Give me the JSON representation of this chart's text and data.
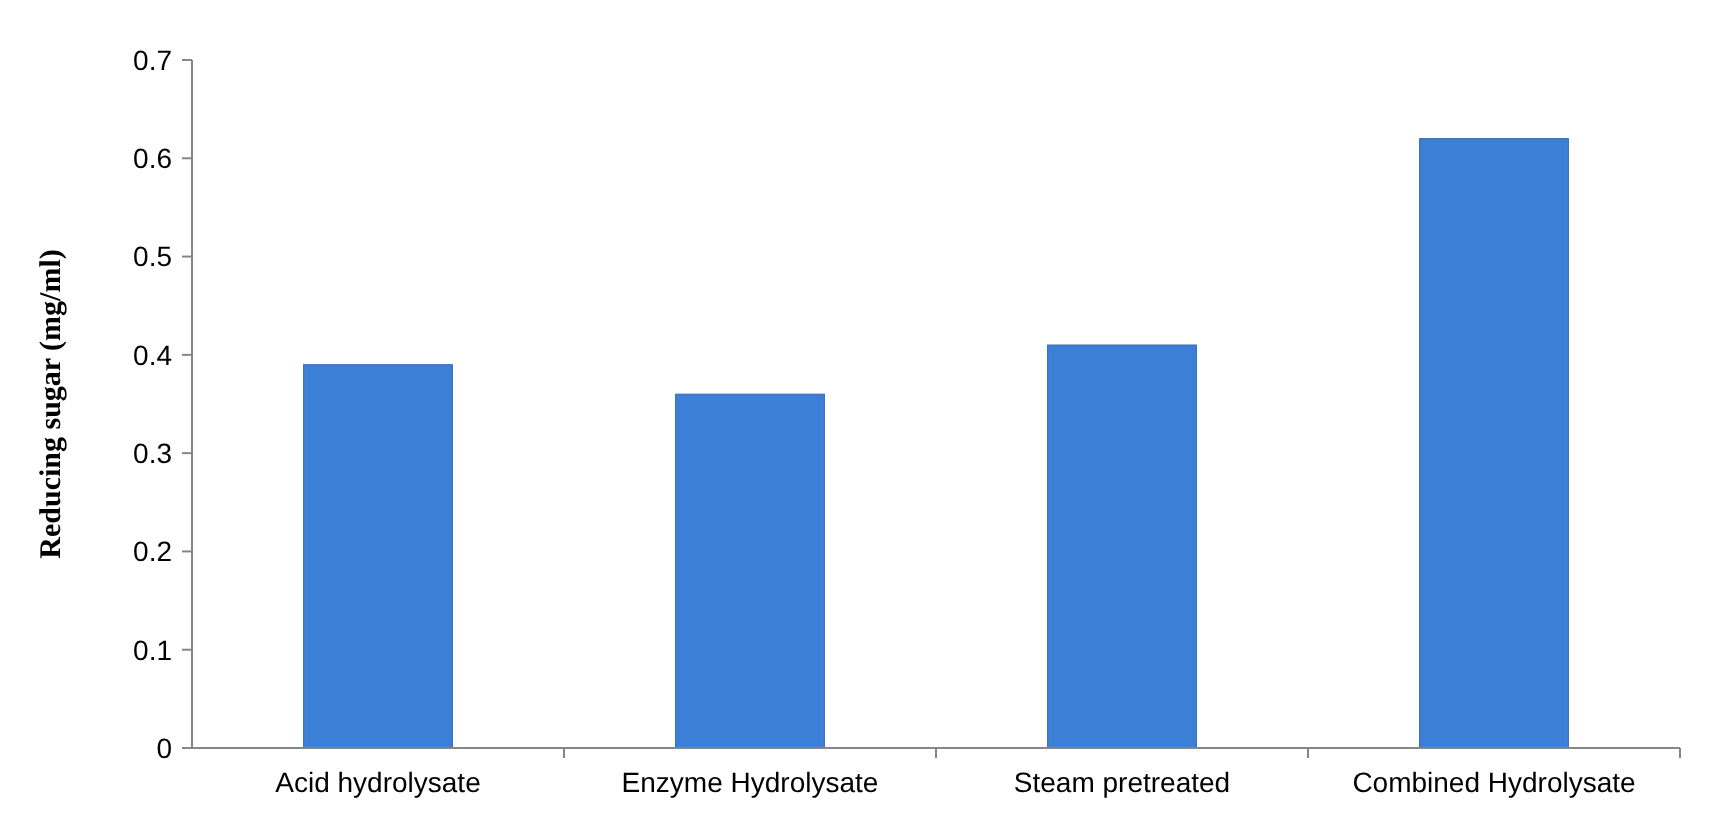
{
  "chart_data": {
    "type": "bar",
    "ylabel": "Reducing sugar (mg/ml)",
    "categories": [
      "Acid hydrolysate",
      "Enzyme Hydrolysate",
      "Steam pretreated",
      "Combined Hydrolysate"
    ],
    "values": [
      0.39,
      0.36,
      0.41,
      0.62
    ],
    "color": "#3c7fd6",
    "ylim": [
      0,
      0.7
    ],
    "yticks": [
      0,
      0.1,
      0.2,
      0.3,
      0.4,
      0.5,
      0.6,
      0.7
    ],
    "grid": false
  }
}
